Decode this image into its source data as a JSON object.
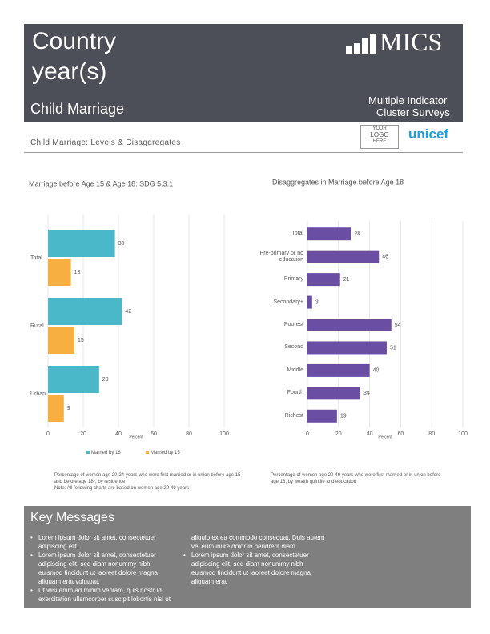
{
  "header": {
    "title_lines": [
      "Country",
      "year(s)"
    ],
    "subtitle": "Child Marriage",
    "logo": "MICS",
    "logo_caption": [
      "Multiple Indicator",
      "Cluster Surveys"
    ],
    "partner_logo": [
      "YOUR",
      "LOGO",
      "HERE"
    ],
    "unicef": "unicef"
  },
  "section_title": "Child Marriage: Levels & Disaggregates",
  "chart_data": [
    {
      "type": "grouped-bar",
      "orientation": "horizontal",
      "title": "Marriage before Age 15 & Age 18: SDG 5.3.1",
      "categories": [
        "Total",
        "Rural",
        "Urban"
      ],
      "series": [
        {
          "name": "Married by 18",
          "color": "#4bb8c9",
          "values": [
            38,
            42,
            29
          ]
        },
        {
          "name": "Married by 15",
          "color": "#f7b040",
          "values": [
            13,
            15,
            9
          ]
        }
      ],
      "xlim": [
        0,
        100
      ],
      "xticks": [
        0,
        20,
        40,
        60,
        80,
        100
      ],
      "xlabel": "Percent",
      "grid": true,
      "legend": "bottom",
      "note": [
        "Percentage of women age 20-24 years who were first married or in union before age 15 and before age 18*, by residence",
        "Note: All following charts are based on women age 20-49 years"
      ]
    },
    {
      "type": "bar",
      "orientation": "horizontal",
      "title": "Disaggregates in Marriage before Age 18",
      "categories": [
        "Total",
        "Pre-primary or no education",
        "Primary",
        "Secondary+",
        "Poorest",
        "Second",
        "Middle",
        "Fourth",
        "Richest"
      ],
      "values": [
        28,
        46,
        21,
        3,
        54,
        51,
        40,
        34,
        19
      ],
      "color": "#6a4ea3",
      "xlim": [
        0,
        100
      ],
      "xticks": [
        0,
        20,
        40,
        60,
        80,
        100
      ],
      "xlabel": "Percent",
      "grid": true,
      "note": [
        "Percentage of women age 20-49 years who were first married or in union before age 18, by wealth quintile and education"
      ]
    }
  ],
  "key_messages": {
    "title": "Key Messages",
    "bullets": [
      "Lorem ipsum dolor sit amet, consectetuer adipiscing elit.",
      "Lorem ipsum dolor sit amet, consectetuer adipiscing elit, sed diam nonummy nibh euismod tincidunt ut laoreet dolore magna aliquam erat volutpat.",
      "Ut wisi enim ad minim veniam, quis nostrud exercitation ullamcorper suscipit lobortis nisl ut aliquip ex ea commodo consequat. Duis autem vel eum iriure dolor in hendrerit diam",
      "Lorem ipsum dolor sit amet, consectetuer adipiscing elit, sed diam nonummy nibh euismod tincidunt ut laoreet dolore magna aliquam erat"
    ]
  }
}
